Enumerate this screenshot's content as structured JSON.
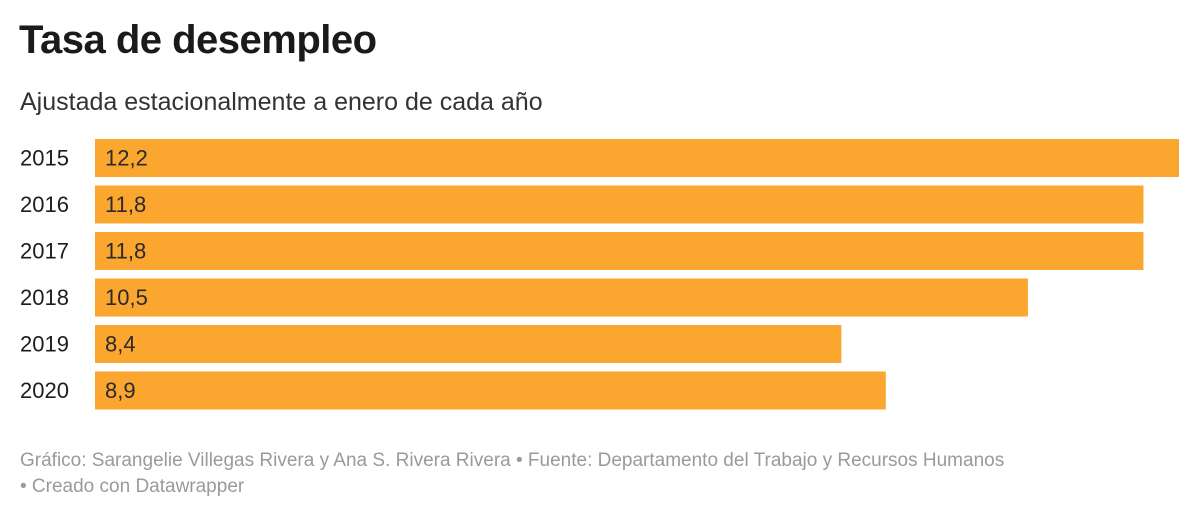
{
  "chart_data": {
    "type": "bar",
    "orientation": "horizontal",
    "title": "Tasa de desempleo",
    "subtitle": "Ajustada estacionalmente a enero de cada año",
    "categories": [
      "2015",
      "2016",
      "2017",
      "2018",
      "2019",
      "2020"
    ],
    "values": [
      12.2,
      11.8,
      11.8,
      10.5,
      8.4,
      8.9
    ],
    "value_labels": [
      "12,2",
      "11,8",
      "11,8",
      "10,5",
      "8,4",
      "8,9"
    ],
    "xlim": [
      0,
      12.2
    ],
    "bar_color": "#faa62f",
    "grid": false,
    "legend": "none"
  },
  "footer": {
    "line1": "Gráfico: Sarangelie Villegas Rivera y Ana S. Rivera Rivera • Fuente: Departamento del Trabajo y Recursos Humanos",
    "line2": "• Creado con Datawrapper"
  }
}
